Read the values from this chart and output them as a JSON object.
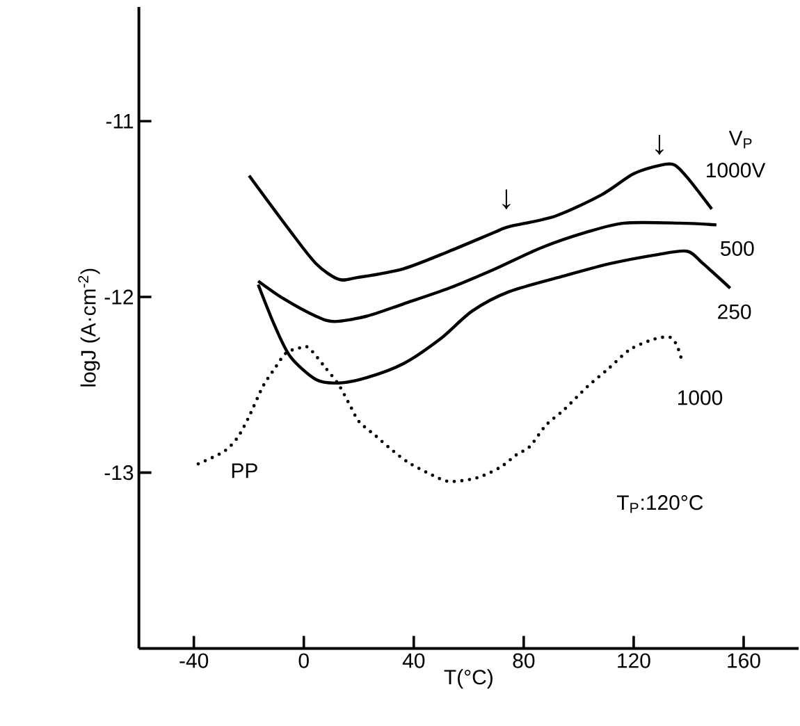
{
  "chart_data": {
    "type": "line",
    "xlabel": "T(°C)",
    "ylabel": "logJ (A·cm$^{-2}$)",
    "legend_title": "V$_{P}$",
    "xlim": [
      -60,
      180
    ],
    "ylim": [
      -14,
      -10.35
    ],
    "xticks": [
      -40,
      0,
      40,
      80,
      120,
      160
    ],
    "yticks": [
      -11,
      -12,
      -13
    ],
    "grid": false,
    "legend": false,
    "marker": "none",
    "series": [
      {
        "name": "1000V",
        "color": "#000000",
        "line_style": "solid",
        "x": [
          -19.9,
          -5.7,
          4.4,
          12.7,
          19.4,
          36.2,
          52.9,
          69.7,
          74.7,
          91.5,
          108.2,
          119.9,
          130.0,
          135.0,
          140.0,
          148.4
        ],
        "values": [
          -11.31,
          -11.61,
          -11.81,
          -11.9,
          -11.89,
          -11.84,
          -11.74,
          -11.63,
          -11.6,
          -11.54,
          -11.42,
          -11.3,
          -11.25,
          -11.25,
          -11.33,
          -11.5
        ]
      },
      {
        "name": "500",
        "color": "#000000",
        "line_style": "solid",
        "x": [
          -16.6,
          -7.4,
          4.4,
          11.1,
          22.8,
          36.2,
          52.9,
          69.7,
          86.4,
          103.2,
          116.6,
          136.7,
          150.1
        ],
        "values": [
          -11.91,
          -12.01,
          -12.11,
          -12.14,
          -12.11,
          -12.04,
          -11.95,
          -11.84,
          -11.72,
          -11.63,
          -11.58,
          -11.58,
          -11.59
        ]
      },
      {
        "name": "250",
        "color": "#000000",
        "line_style": "solid",
        "x": [
          -16.6,
          -10.7,
          -4.9,
          4.4,
          12.7,
          22.8,
          36.2,
          49.6,
          61.3,
          74.7,
          94.8,
          111.6,
          128.3,
          139.4,
          145.2,
          155.1
        ],
        "values": [
          -11.93,
          -12.16,
          -12.34,
          -12.47,
          -12.49,
          -12.46,
          -12.38,
          -12.24,
          -12.08,
          -11.97,
          -11.88,
          -11.81,
          -11.76,
          -11.74,
          -11.81,
          -11.95
        ]
      },
      {
        "name": "1000",
        "color": "#000000",
        "line_style": "dotted",
        "x": [
          -38.4,
          -29.1,
          -24.1,
          -19.9,
          -14.9,
          -10.7,
          -6.5,
          -1.5,
          1.8,
          7.7,
          12.7,
          16.9,
          20.1,
          26.1,
          31.2,
          37.8,
          46.2,
          52.9,
          62.9,
          71.4,
          77.2,
          82.3,
          88.1,
          94.8,
          103.2,
          110.7,
          118.6,
          127.5,
          133.3,
          135.8,
          137.5
        ],
        "values": [
          -12.95,
          -12.88,
          -12.8,
          -12.68,
          -12.51,
          -12.41,
          -12.32,
          -12.29,
          -12.29,
          -12.4,
          -12.5,
          -12.62,
          -12.71,
          -12.79,
          -12.86,
          -12.94,
          -13.01,
          -13.05,
          -13.03,
          -12.97,
          -12.9,
          -12.85,
          -12.73,
          -12.64,
          -12.51,
          -12.41,
          -12.3,
          -12.24,
          -12.23,
          -12.28,
          -12.36
        ]
      }
    ],
    "annotations": [
      "PP",
      "↓",
      "↓",
      "T$_{P}$:120°C"
    ]
  }
}
